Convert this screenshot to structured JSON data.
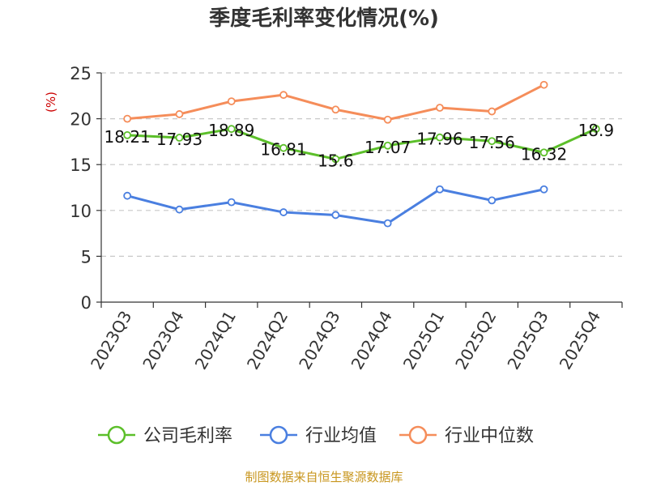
{
  "chart_data": {
    "type": "line",
    "title": "季度毛利率变化情况(%)",
    "ylabel": "(%)",
    "categories": [
      "2023Q3",
      "2023Q4",
      "2024Q1",
      "2024Q2",
      "2024Q3",
      "2024Q4",
      "2025Q1",
      "2025Q2",
      "2025Q3",
      "2025Q4"
    ],
    "ylim": [
      0,
      25
    ],
    "yticks": [
      0,
      5,
      10,
      15,
      20,
      25
    ],
    "grid": true,
    "legend_position": "bottom",
    "series": [
      {
        "name": "公司毛利率",
        "color": "#5cbf2a",
        "labels": true,
        "values": [
          18.21,
          17.93,
          18.89,
          16.81,
          15.6,
          17.07,
          17.96,
          17.56,
          16.32,
          18.9
        ]
      },
      {
        "name": "行业均值",
        "color": "#4a7fe0",
        "labels": false,
        "values": [
          11.6,
          10.1,
          10.9,
          9.8,
          9.5,
          8.6,
          12.3,
          11.1,
          12.3,
          null
        ]
      },
      {
        "name": "行业中位数",
        "color": "#f58d5a",
        "labels": false,
        "values": [
          20.0,
          20.5,
          21.9,
          22.6,
          21.0,
          19.9,
          21.2,
          20.8,
          23.7,
          null
        ]
      }
    ]
  },
  "footer": {
    "source": "制图数据来自恒生聚源数据库"
  }
}
